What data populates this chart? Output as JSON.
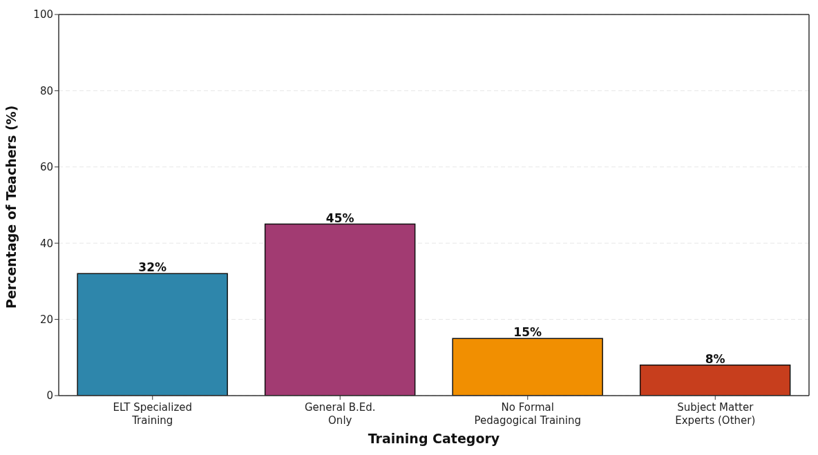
{
  "chart_data": {
    "type": "bar",
    "xlabel": "Training Category",
    "ylabel": "Percentage of Teachers (%)",
    "categories": [
      "ELT Specialized\nTraining",
      "General B.Ed.\nOnly",
      "No Formal\nPedagogical Training",
      "Subject Matter\nExperts (Other)"
    ],
    "values": [
      32,
      45,
      15,
      8
    ],
    "colors": [
      "#2e86ab",
      "#a23b72",
      "#f18f01",
      "#c73e1d"
    ],
    "value_labels": [
      "32%",
      "45%",
      "15%",
      "8%"
    ],
    "ylim": [
      0,
      100
    ],
    "yticks": [
      0,
      20,
      40,
      60,
      80,
      100
    ],
    "grid": "y"
  }
}
